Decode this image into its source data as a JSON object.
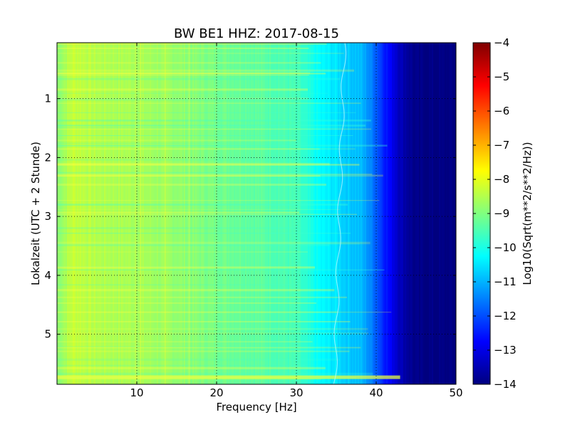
{
  "chart_data": {
    "type": "heatmap",
    "title": "BW BE1 HHZ: 2017-08-15",
    "xlabel": "Frequency [Hz]",
    "ylabel": "Lokalzeit (UTC + 2 Stunde)",
    "xlim": [
      0,
      50
    ],
    "ylim": [
      5.85,
      0.05
    ],
    "x_ticks": [
      "10",
      "20",
      "30",
      "40",
      "50"
    ],
    "y_ticks": [
      "1",
      "2",
      "3",
      "4",
      "5"
    ],
    "grid": true,
    "colorbar": {
      "label": "Log10(Sqrt(m**2/s**2/Hz))",
      "range": [
        -14,
        -4
      ],
      "ticks": [
        "-4",
        "-5",
        "-6",
        "-7",
        "-8",
        "-9",
        "-10",
        "-11",
        "-12",
        "-13",
        "-14"
      ],
      "colormap": "jet"
    },
    "profile": {
      "frequency_hz": [
        0,
        2,
        5,
        10,
        15,
        20,
        25,
        30,
        33,
        35,
        36,
        38,
        39,
        40,
        41,
        42,
        43,
        44,
        45,
        50
      ],
      "log10_amplitude": [
        -8.9,
        -8.3,
        -8.5,
        -8.6,
        -8.8,
        -9.1,
        -9.3,
        -9.6,
        -10.3,
        -10.5,
        -10.7,
        -10.9,
        -11.3,
        -11.8,
        -12.4,
        -12.9,
        -13.4,
        -13.7,
        -13.95,
        -14.0
      ]
    },
    "features": [
      {
        "label": "",
        "note": "strong horizontal band near 5.7 h across 0–43 Hz"
      },
      {
        "label": "",
        "note": "faint wandering line near 35–36 Hz"
      }
    ]
  }
}
